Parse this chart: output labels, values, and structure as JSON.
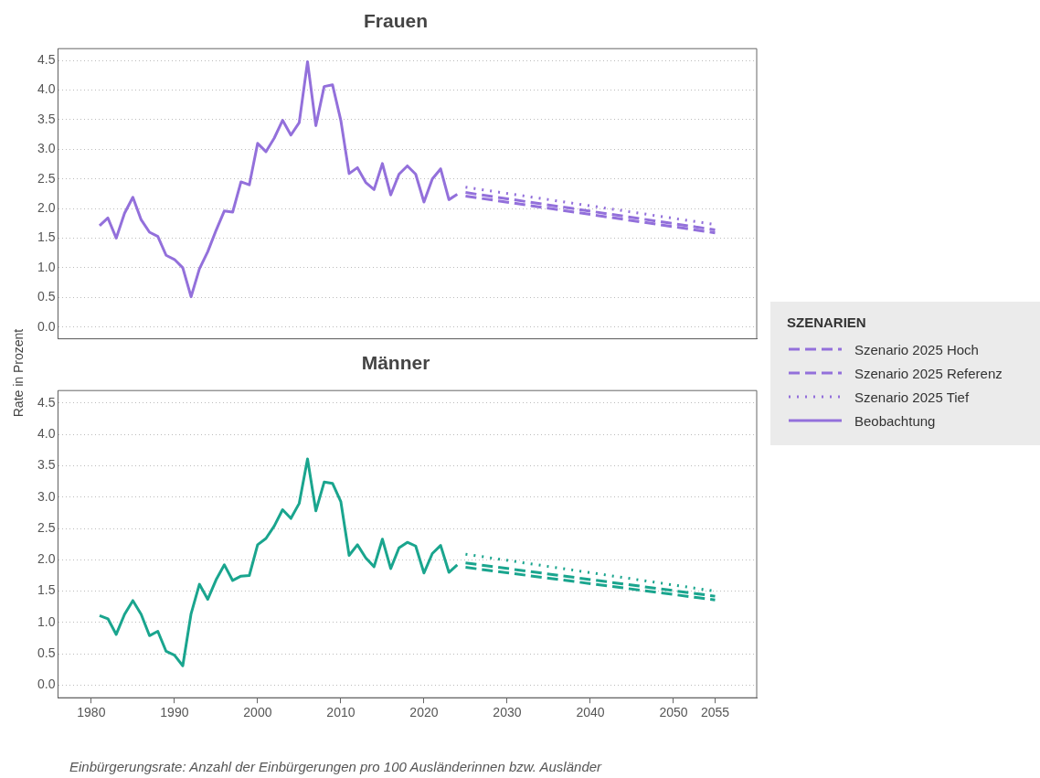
{
  "chart_data": [
    {
      "type": "line",
      "title": "Frauen",
      "ylabel": "Rate in Prozent",
      "legend_title": "SZENARIEN",
      "legend": "right",
      "grid": "y",
      "tick_labels": "y",
      "xlim": [
        1976,
        2060
      ],
      "xticks": [
        1980,
        1990,
        2000,
        2010,
        2020,
        2030,
        2040,
        2050,
        2055
      ],
      "ylim": [
        -0.2,
        4.7
      ],
      "yticks": [
        {
          "value": 0,
          "label": "0.0"
        },
        0.5,
        {
          "value": 1,
          "label": "1.0"
        },
        1.5,
        {
          "value": 2,
          "label": "2.0"
        },
        2.5,
        {
          "value": 3,
          "label": "3.0"
        },
        3.5,
        {
          "value": 4,
          "label": "4.0"
        },
        4.5
      ],
      "series": [
        {
          "name": "Szenario 2025 Hoch",
          "color": "#9370db",
          "line_style": "dashed",
          "x": [
            2025,
            2055
          ],
          "values": [
            2.21,
            1.59
          ]
        },
        {
          "name": "Szenario 2025 Referenz",
          "color": "#9370db",
          "line_style": "dashed",
          "x": [
            2025,
            2055
          ],
          "values": [
            2.27,
            1.64
          ]
        },
        {
          "name": "Szenario 2025 Tief",
          "color": "#9370db",
          "line_style": "dotted",
          "x": [
            2025,
            2055
          ],
          "values": [
            2.36,
            1.73
          ]
        },
        {
          "name": "Beobachtung",
          "color": "#9370db",
          "line_style": "solid",
          "x": [
            1981,
            1982,
            1983,
            1984,
            1985,
            1986,
            1987,
            1988,
            1989,
            1990,
            1991,
            1992,
            1993,
            1994,
            1995,
            1996,
            1997,
            1998,
            1999,
            2000,
            2001,
            2002,
            2003,
            2004,
            2005,
            2006,
            2007,
            2008,
            2009,
            2010,
            2011,
            2012,
            2013,
            2014,
            2015,
            2016,
            2017,
            2018,
            2019,
            2020,
            2021,
            2022,
            2023,
            2024
          ],
          "values": [
            1.71,
            1.84,
            1.5,
            1.92,
            2.19,
            1.81,
            1.6,
            1.53,
            1.21,
            1.14,
            1.0,
            0.51,
            0.98,
            1.27,
            1.63,
            1.96,
            1.94,
            2.45,
            2.4,
            3.1,
            2.96,
            3.19,
            3.49,
            3.24,
            3.45,
            4.48,
            3.4,
            4.06,
            4.09,
            3.49,
            2.59,
            2.69,
            2.44,
            2.32,
            2.76,
            2.23,
            2.58,
            2.72,
            2.58,
            2.11,
            2.5,
            2.67,
            2.15,
            2.24
          ]
        }
      ]
    },
    {
      "type": "line",
      "title": "Männer",
      "grid": "y",
      "annotations": [
        "Einbürgerungsrate: Anzahl der Einbürgerungen pro 100 Ausländerinnen bzw. Ausländer"
      ],
      "xlim": [
        1976,
        2060
      ],
      "xticks": [
        1980,
        1990,
        2000,
        2010,
        2020,
        2030,
        2040,
        2050,
        2055
      ],
      "ylim": [
        -0.2,
        4.7
      ],
      "yticks": [
        {
          "value": 0,
          "label": "0.0"
        },
        0.5,
        {
          "value": 1,
          "label": "1.0"
        },
        1.5,
        {
          "value": 2,
          "label": "2.0"
        },
        2.5,
        {
          "value": 3,
          "label": "3.0"
        },
        3.5,
        {
          "value": 4,
          "label": "4.0"
        },
        4.5
      ],
      "series": [
        {
          "color": "#1aa58e",
          "line_style": "dashed",
          "x": [
            2025,
            2055
          ],
          "values": [
            1.88,
            1.36
          ]
        },
        {
          "color": "#1aa58e",
          "line_style": "dashed",
          "x": [
            2025,
            2055
          ],
          "values": [
            1.95,
            1.42
          ]
        },
        {
          "color": "#1aa58e",
          "line_style": "dotted",
          "x": [
            2025,
            2055
          ],
          "values": [
            2.09,
            1.5
          ]
        },
        {
          "color": "#1aa58e",
          "line_style": "solid",
          "x": [
            1981,
            1982,
            1983,
            1984,
            1985,
            1986,
            1987,
            1988,
            1989,
            1990,
            1991,
            1992,
            1993,
            1994,
            1995,
            1996,
            1997,
            1998,
            1999,
            2000,
            2001,
            2002,
            2003,
            2004,
            2005,
            2006,
            2007,
            2008,
            2009,
            2010,
            2011,
            2012,
            2013,
            2014,
            2015,
            2016,
            2017,
            2018,
            2019,
            2020,
            2021,
            2022,
            2023,
            2024
          ],
          "values": [
            1.11,
            1.06,
            0.81,
            1.13,
            1.35,
            1.13,
            0.79,
            0.86,
            0.54,
            0.48,
            0.31,
            1.14,
            1.61,
            1.37,
            1.68,
            1.92,
            1.67,
            1.74,
            1.75,
            2.24,
            2.34,
            2.54,
            2.8,
            2.66,
            2.9,
            3.61,
            2.78,
            3.24,
            3.22,
            2.93,
            2.07,
            2.24,
            2.03,
            1.89,
            2.33,
            1.86,
            2.19,
            2.28,
            2.22,
            1.79,
            2.1,
            2.23,
            1.8,
            1.92
          ]
        }
      ]
    }
  ]
}
